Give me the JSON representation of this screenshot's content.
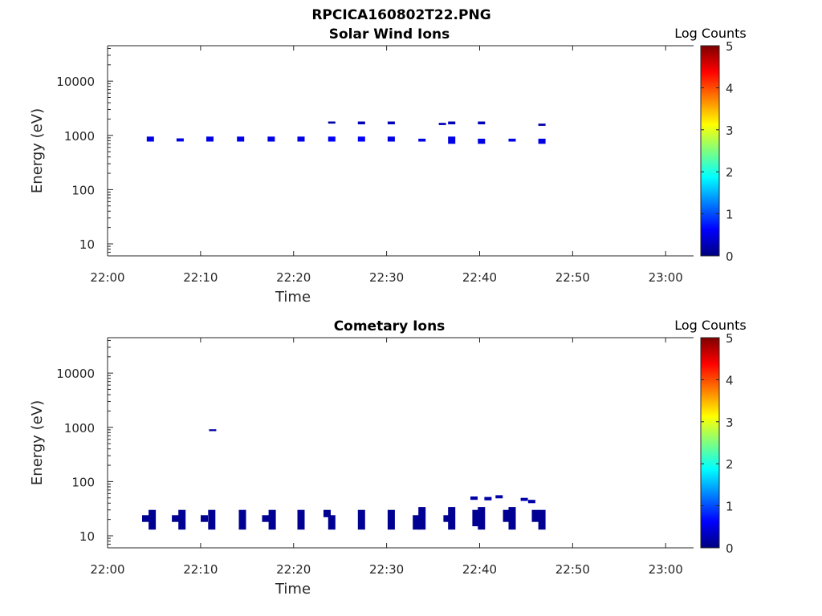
{
  "figure_title": "RPCICA160802T22.PNG",
  "colormap": [
    "#00007f",
    "#0000ff",
    "#007fff",
    "#00ffff",
    "#7fff7f",
    "#ffff00",
    "#ff7f00",
    "#ff0000",
    "#7f0000"
  ],
  "chart_data": [
    {
      "type": "heatmap",
      "title": "Solar Wind Ions",
      "xlabel": "Time",
      "ylabel": "Energy (eV)",
      "x_ticks": [
        "22:00",
        "22:10",
        "22:20",
        "22:30",
        "22:40",
        "22:50",
        "23:00"
      ],
      "x_range_minutes": [
        0,
        63
      ],
      "y_scale": "log",
      "y_ticks": [
        10,
        100,
        1000,
        10000
      ],
      "y_tick_labels": [
        "10",
        "100",
        "1000",
        "10000"
      ],
      "y_range": [
        6,
        45000
      ],
      "colorbar": {
        "label": "Log Counts",
        "range": [
          0,
          5
        ],
        "ticks": [
          "0",
          "1",
          "2",
          "3",
          "4",
          "5"
        ]
      },
      "grid": false,
      "cells": [
        {
          "t": 4.6,
          "e0": 770,
          "e1": 950,
          "v": 0.5
        },
        {
          "t": 7.8,
          "e0": 770,
          "e1": 880,
          "v": 0.5
        },
        {
          "t": 11.0,
          "e0": 770,
          "e1": 950,
          "v": 0.5
        },
        {
          "t": 14.3,
          "e0": 770,
          "e1": 950,
          "v": 0.5
        },
        {
          "t": 17.6,
          "e0": 770,
          "e1": 950,
          "v": 0.5
        },
        {
          "t": 20.8,
          "e0": 770,
          "e1": 950,
          "v": 0.5
        },
        {
          "t": 24.1,
          "e0": 770,
          "e1": 950,
          "v": 0.6
        },
        {
          "t": 27.3,
          "e0": 770,
          "e1": 950,
          "v": 0.6
        },
        {
          "t": 30.5,
          "e0": 770,
          "e1": 950,
          "v": 0.5
        },
        {
          "t": 33.8,
          "e0": 770,
          "e1": 870,
          "v": 0.5
        },
        {
          "t": 37.0,
          "e0": 700,
          "e1": 950,
          "v": 0.5
        },
        {
          "t": 40.2,
          "e0": 700,
          "e1": 870,
          "v": 0.5
        },
        {
          "t": 43.5,
          "e0": 770,
          "e1": 870,
          "v": 0.5
        },
        {
          "t": 46.7,
          "e0": 700,
          "e1": 870,
          "v": 0.5
        },
        {
          "t": 24.1,
          "e0": 1650,
          "e1": 1800,
          "v": 0.2
        },
        {
          "t": 27.3,
          "e0": 1600,
          "e1": 1800,
          "v": 0.3
        },
        {
          "t": 30.5,
          "e0": 1600,
          "e1": 1800,
          "v": 0.3
        },
        {
          "t": 36.0,
          "e0": 1550,
          "e1": 1700,
          "v": 0.3
        },
        {
          "t": 37.0,
          "e0": 1600,
          "e1": 1800,
          "v": 0.3
        },
        {
          "t": 40.2,
          "e0": 1600,
          "e1": 1800,
          "v": 0.3
        },
        {
          "t": 46.7,
          "e0": 1500,
          "e1": 1650,
          "v": 0.2
        }
      ]
    },
    {
      "type": "heatmap",
      "title": "Cometary Ions",
      "xlabel": "Time",
      "ylabel": "Energy (eV)",
      "x_ticks": [
        "22:00",
        "22:10",
        "22:20",
        "22:30",
        "22:40",
        "22:50",
        "23:00"
      ],
      "x_range_minutes": [
        0,
        63
      ],
      "y_scale": "log",
      "y_ticks": [
        10,
        100,
        1000,
        10000
      ],
      "y_tick_labels": [
        "10",
        "100",
        "1000",
        "10000"
      ],
      "y_range": [
        6,
        45000
      ],
      "colorbar": {
        "label": "Log Counts",
        "range": [
          0,
          5
        ],
        "ticks": [
          "0",
          "1",
          "2",
          "3",
          "4",
          "5"
        ]
      },
      "grid": false,
      "cells": [
        {
          "t": 4.1,
          "e0": 18,
          "e1": 24,
          "v": 0.1
        },
        {
          "t": 4.8,
          "e0": 13,
          "e1": 30,
          "v": 0.1
        },
        {
          "t": 7.3,
          "e0": 18,
          "e1": 24,
          "v": 0.1
        },
        {
          "t": 8.0,
          "e0": 13,
          "e1": 30,
          "v": 0.1
        },
        {
          "t": 10.4,
          "e0": 18,
          "e1": 24,
          "v": 0.1
        },
        {
          "t": 11.2,
          "e0": 13,
          "e1": 30,
          "v": 0.1
        },
        {
          "t": 11.3,
          "e0": 850,
          "e1": 920,
          "v": 0.2
        },
        {
          "t": 14.5,
          "e0": 13,
          "e1": 30,
          "v": 0.1
        },
        {
          "t": 17.0,
          "e0": 18,
          "e1": 24,
          "v": 0.1
        },
        {
          "t": 17.7,
          "e0": 13,
          "e1": 30,
          "v": 0.1
        },
        {
          "t": 20.8,
          "e0": 13,
          "e1": 30,
          "v": 0.1
        },
        {
          "t": 23.6,
          "e0": 22,
          "e1": 30,
          "v": 0.1
        },
        {
          "t": 24.1,
          "e0": 13,
          "e1": 24,
          "v": 0.1
        },
        {
          "t": 27.3,
          "e0": 13,
          "e1": 30,
          "v": 0.1
        },
        {
          "t": 30.5,
          "e0": 13,
          "e1": 30,
          "v": 0.1
        },
        {
          "t": 33.2,
          "e0": 13,
          "e1": 24,
          "v": 0.1
        },
        {
          "t": 33.8,
          "e0": 13,
          "e1": 34,
          "v": 0.1
        },
        {
          "t": 36.5,
          "e0": 18,
          "e1": 24,
          "v": 0.1
        },
        {
          "t": 37.0,
          "e0": 13,
          "e1": 34,
          "v": 0.1
        },
        {
          "t": 39.6,
          "e0": 15,
          "e1": 30,
          "v": 0.1
        },
        {
          "t": 40.2,
          "e0": 13,
          "e1": 34,
          "v": 0.1
        },
        {
          "t": 39.4,
          "e0": 46,
          "e1": 53,
          "v": 0.2
        },
        {
          "t": 40.9,
          "e0": 45,
          "e1": 52,
          "v": 0.2
        },
        {
          "t": 42.1,
          "e0": 49,
          "e1": 56,
          "v": 0.2
        },
        {
          "t": 42.9,
          "e0": 18,
          "e1": 30,
          "v": 0.1
        },
        {
          "t": 43.5,
          "e0": 13,
          "e1": 34,
          "v": 0.1
        },
        {
          "t": 44.8,
          "e0": 44,
          "e1": 50,
          "v": 0.2
        },
        {
          "t": 45.6,
          "e0": 40,
          "e1": 46,
          "v": 0.2
        },
        {
          "t": 46.0,
          "e0": 18,
          "e1": 30,
          "v": 0.1
        },
        {
          "t": 46.7,
          "e0": 13,
          "e1": 30,
          "v": 0.1
        }
      ]
    }
  ]
}
